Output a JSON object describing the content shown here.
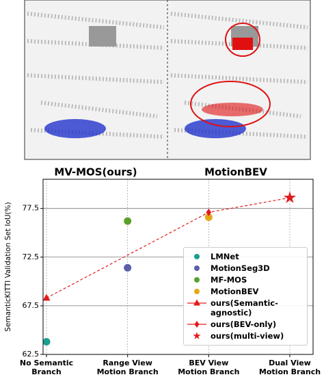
{
  "header": {
    "left_label": "MV-MOS(ours)",
    "right_label": "MotionBEV"
  },
  "chart_data": {
    "type": "scatter",
    "y_label": "SemanticKITTI Validation Set IoU(%)",
    "categories": [
      "No Semantic Branch",
      "Range View Motion Branch",
      "BEV  View Motion Branch",
      "Dual View Motion Branch"
    ],
    "ylim": [
      62.5,
      80.5
    ],
    "yticks": [
      62.5,
      67.5,
      72.5,
      77.5
    ],
    "grid": true,
    "series": [
      {
        "name": "LMNet",
        "color": "#1a9e8f",
        "marker": "circle",
        "values": [
          63.8,
          null,
          null,
          null
        ]
      },
      {
        "name": "MotionSeg3D",
        "color": "#5a5fa8",
        "marker": "circle",
        "values": [
          null,
          71.4,
          null,
          null
        ]
      },
      {
        "name": "MF-MOS",
        "color": "#5aa02c",
        "marker": "circle",
        "values": [
          null,
          76.2,
          null,
          null
        ]
      },
      {
        "name": "MotionBEV",
        "color": "#e6a817",
        "marker": "circle",
        "values": [
          null,
          null,
          76.6,
          null
        ]
      },
      {
        "name": "ours(Semantic-agnostic)",
        "color": "#e31a1c",
        "marker": "triangle",
        "line": true,
        "values": [
          68.3,
          null,
          null,
          null
        ]
      },
      {
        "name": "ours(BEV-only)",
        "color": "#e31a1c",
        "marker": "diamond",
        "line": true,
        "values": [
          null,
          null,
          77.1,
          null
        ]
      },
      {
        "name": "ours(multi-view)",
        "color": "#e31a1c",
        "marker": "star",
        "line": true,
        "values": [
          null,
          null,
          null,
          78.6
        ]
      }
    ]
  }
}
